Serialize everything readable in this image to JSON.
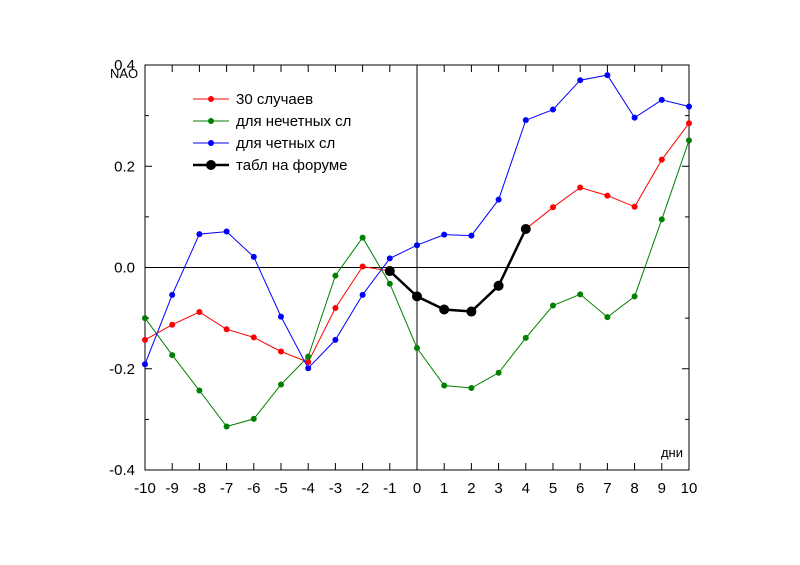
{
  "chart_data": {
    "type": "line",
    "title": "",
    "xlabel": "дни",
    "ylabel": "NAO",
    "xlim": [
      -10,
      10
    ],
    "ylim": [
      -0.4,
      0.4
    ],
    "x_ticks": [
      -10,
      -9,
      -8,
      -7,
      -6,
      -5,
      -4,
      -3,
      -2,
      -1,
      0,
      1,
      2,
      3,
      4,
      5,
      6,
      7,
      8,
      9,
      10
    ],
    "y_ticks": [
      -0.4,
      -0.2,
      0.0,
      0.2,
      0.4
    ],
    "y_tick_labels": [
      "-0.4",
      "-0.2",
      "0.0",
      "0.2",
      "0.4"
    ],
    "grid": false,
    "legend_position": "top-left",
    "reference_lines": {
      "x": 0,
      "y": 0
    },
    "series": [
      {
        "name": "30 случаев",
        "color": "#ff0000",
        "x": [
          -10,
          -9,
          -8,
          -7,
          -6,
          -5,
          -4,
          -3,
          -2,
          -1,
          0,
          1,
          2,
          3,
          4,
          5,
          6,
          7,
          8,
          9,
          10
        ],
        "values": [
          -0.143,
          -0.113,
          -0.088,
          -0.122,
          -0.138,
          -0.166,
          -0.187,
          -0.08,
          0.002,
          -0.007,
          -0.057,
          -0.083,
          -0.087,
          -0.036,
          0.076,
          0.119,
          0.158,
          0.142,
          0.12,
          0.213,
          0.285
        ]
      },
      {
        "name": "для нечетных сл",
        "color": "#008000",
        "x": [
          -10,
          -9,
          -8,
          -7,
          -6,
          -5,
          -4,
          -3,
          -2,
          -1,
          0,
          1,
          2,
          3,
          4,
          5,
          6,
          7,
          8,
          9,
          10
        ],
        "values": [
          -0.1,
          -0.173,
          -0.243,
          -0.314,
          -0.299,
          -0.231,
          -0.176,
          -0.016,
          0.059,
          -0.032,
          -0.159,
          -0.233,
          -0.238,
          -0.208,
          -0.139,
          -0.075,
          -0.053,
          -0.098,
          -0.057,
          0.095,
          0.251
        ]
      },
      {
        "name": "для четных сл",
        "color": "#0000ff",
        "x": [
          -10,
          -9,
          -8,
          -7,
          -6,
          -5,
          -4,
          -3,
          -2,
          -1,
          0,
          1,
          2,
          3,
          4,
          5,
          6,
          7,
          8,
          9,
          10
        ],
        "values": [
          -0.191,
          -0.054,
          0.066,
          0.071,
          0.021,
          -0.097,
          -0.199,
          -0.143,
          -0.054,
          0.018,
          0.044,
          0.065,
          0.063,
          0.134,
          0.291,
          0.312,
          0.37,
          0.38,
          0.296,
          0.331,
          0.318
        ]
      },
      {
        "name": "табл на форуме",
        "color": "#000000",
        "emphasis": true,
        "x": [
          -1,
          0,
          1,
          2,
          3,
          4
        ],
        "values": [
          -0.007,
          -0.057,
          -0.083,
          -0.087,
          -0.036,
          0.076
        ]
      }
    ]
  }
}
